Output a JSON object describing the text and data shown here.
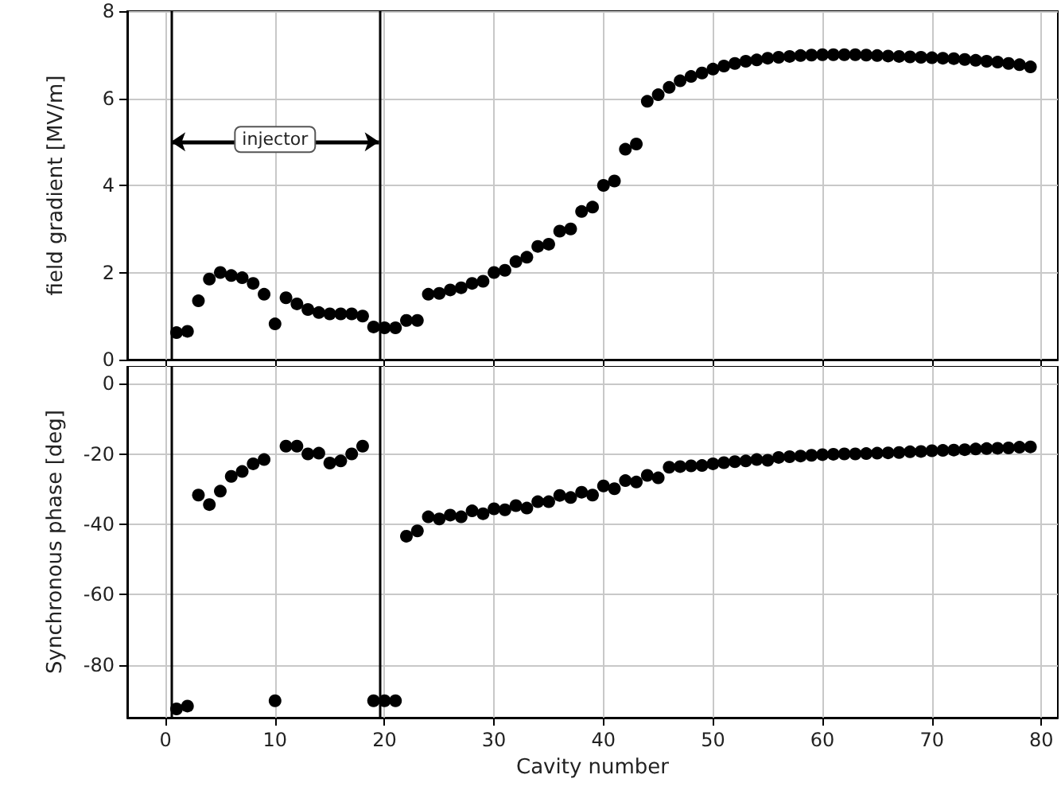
{
  "chart_data": [
    {
      "type": "scatter",
      "ylabel": "field gradient [MV/m]",
      "x": [
        1,
        2,
        3,
        4,
        5,
        6,
        7,
        8,
        9,
        10,
        11,
        12,
        13,
        14,
        15,
        16,
        17,
        18,
        19,
        20,
        21,
        22,
        23,
        24,
        25,
        26,
        27,
        28,
        29,
        30,
        31,
        32,
        33,
        34,
        35,
        36,
        37,
        38,
        39,
        40,
        41,
        42,
        43,
        44,
        45,
        46,
        47,
        48,
        49,
        50,
        51,
        52,
        53,
        54,
        55,
        56,
        57,
        58,
        59,
        60,
        61,
        62,
        63,
        64,
        65,
        66,
        67,
        68,
        69,
        70,
        71,
        72,
        73,
        74,
        75,
        76,
        77,
        78,
        79
      ],
      "series": [
        {
          "color": "#000000",
          "values": [
            0.62,
            0.65,
            1.35,
            1.85,
            2.0,
            1.93,
            1.88,
            1.75,
            1.5,
            0.82,
            1.42,
            1.28,
            1.15,
            1.08,
            1.05,
            1.05,
            1.05,
            1.0,
            0.75,
            0.73,
            0.73,
            0.9,
            0.9,
            1.5,
            1.52,
            1.6,
            1.65,
            1.75,
            1.8,
            2.0,
            2.05,
            2.25,
            2.35,
            2.6,
            2.65,
            2.95,
            3.0,
            3.4,
            3.5,
            4.0,
            4.1,
            4.83,
            4.95,
            5.93,
            6.08,
            6.25,
            6.4,
            6.5,
            6.58,
            6.67,
            6.74,
            6.8,
            6.85,
            6.88,
            6.92,
            6.94,
            6.96,
            6.98,
            6.99,
            7.0,
            7.0,
            7.0,
            7.0,
            6.99,
            6.98,
            6.97,
            6.96,
            6.95,
            6.94,
            6.93,
            6.92,
            6.91,
            6.89,
            6.87,
            6.85,
            6.83,
            6.8,
            6.77,
            6.72
          ]
        }
      ],
      "xlim": [
        -3.5,
        81.5
      ],
      "xticks": [
        0,
        10,
        20,
        30,
        40,
        50,
        60,
        70,
        80
      ],
      "ylim": [
        0,
        8
      ],
      "yticks": [
        0,
        2,
        4,
        6,
        8
      ],
      "tick_labels": "y",
      "grid": true,
      "marker": "circle",
      "ref_lines": [
        {
          "axis": "x",
          "value": 0.5,
          "color": "#000000"
        },
        {
          "axis": "x",
          "value": 19.5,
          "color": "#000000"
        }
      ],
      "annotations": [
        "injector"
      ]
    },
    {
      "type": "scatter",
      "xlabel": "Cavity number",
      "ylabel": "Synchronous phase [deg]",
      "x": [
        1,
        2,
        3,
        4,
        5,
        6,
        7,
        8,
        9,
        10,
        11,
        12,
        13,
        14,
        15,
        16,
        17,
        18,
        19,
        20,
        21,
        22,
        23,
        24,
        25,
        26,
        27,
        28,
        29,
        30,
        31,
        32,
        33,
        34,
        35,
        36,
        37,
        38,
        39,
        40,
        41,
        42,
        43,
        44,
        45,
        46,
        47,
        48,
        49,
        50,
        51,
        52,
        53,
        54,
        55,
        56,
        57,
        58,
        59,
        60,
        61,
        62,
        63,
        64,
        65,
        66,
        67,
        68,
        69,
        70,
        71,
        72,
        73,
        74,
        75,
        76,
        77,
        78,
        79
      ],
      "series": [
        {
          "color": "#000000",
          "values": [
            -92.5,
            -91.7,
            -31.7,
            -34.4,
            -30.6,
            -26.4,
            -25,
            -22.8,
            -21.6,
            -90.2,
            -17.8,
            -17.8,
            -20,
            -19.8,
            -22.6,
            -22,
            -20,
            -17.8,
            -90.2,
            -90.2,
            -90.2,
            -43.4,
            -41.9,
            -37.9,
            -38.5,
            -37.4,
            -37.9,
            -36.2,
            -37,
            -35.6,
            -35.9,
            -34.7,
            -35.4,
            -33.6,
            -33.6,
            -31.8,
            -32.4,
            -30.9,
            -31.7,
            -29.1,
            -29.9,
            -27.6,
            -28,
            -26.1,
            -26.8,
            -23.8,
            -23.6,
            -23.4,
            -23.3,
            -22.8,
            -22.5,
            -22.2,
            -22,
            -21.6,
            -21.8,
            -21,
            -20.8,
            -20.6,
            -20.4,
            -20.2,
            -20.1,
            -20,
            -20,
            -19.9,
            -19.8,
            -19.7,
            -19.6,
            -19.4,
            -19.3,
            -19.1,
            -19,
            -18.9,
            -18.8,
            -18.6,
            -18.5,
            -18.4,
            -18.3,
            -18.1,
            -18
          ]
        }
      ],
      "xlim": [
        -3.5,
        81.5
      ],
      "xticks": [
        0,
        10,
        20,
        30,
        40,
        50,
        60,
        70,
        80
      ],
      "ylim": [
        -95,
        5
      ],
      "yticks": [
        -80,
        -60,
        -40,
        -20,
        0
      ],
      "grid": true,
      "marker": "circle",
      "ref_lines": [
        {
          "axis": "x",
          "value": 0.5,
          "color": "#000000"
        },
        {
          "axis": "x",
          "value": 19.5,
          "color": "#000000"
        }
      ]
    }
  ]
}
